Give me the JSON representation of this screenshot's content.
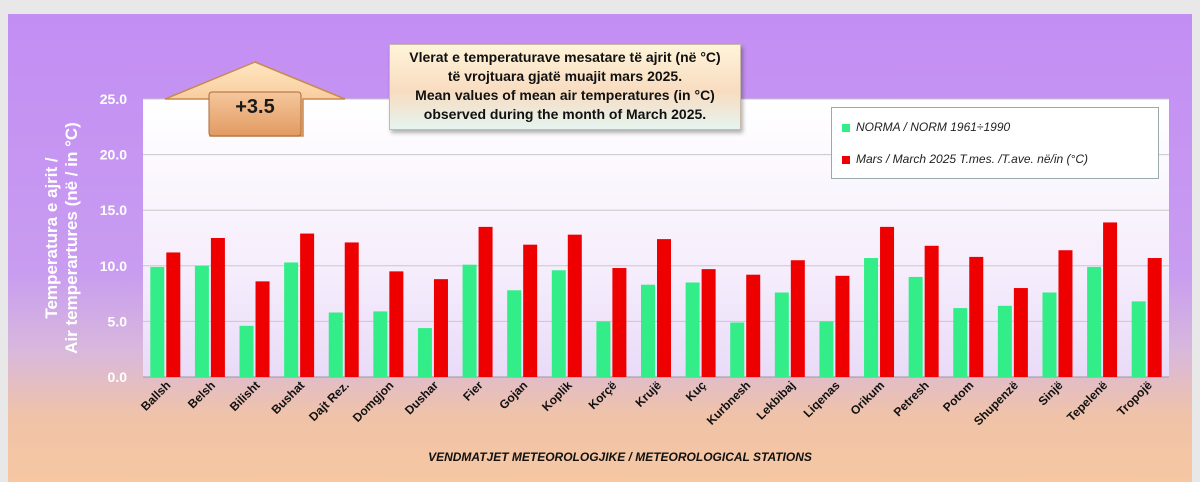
{
  "badge": {
    "value": "+3.5"
  },
  "chart_data": {
    "type": "bar",
    "title_lines": [
      "Vlerat e temperaturave mesatare të ajrit (në °C)",
      "të vrojtuara gjatë muajit mars 2025.",
      "Mean values of mean air temperatures (in °C)",
      "observed during the month of March 2025."
    ],
    "ylabel_lines": [
      "Temperatura e ajrit /",
      "Air temperartures (në / in °C)"
    ],
    "xlabel": "VENDMATJET  METEOROLOGJIKE / METEOROLOGICAL STATIONS",
    "ylim": [
      0,
      25
    ],
    "yticks": [
      "0.0",
      "5.0",
      "10.0",
      "15.0",
      "20.0",
      "25.0"
    ],
    "grid": true,
    "legend_position": "top-right",
    "categories": [
      "Ballsh",
      "Belsh",
      "Bilisht",
      "Bushat",
      "Dajt Rez.",
      "Domgjon",
      "Dushar",
      "Fier",
      "Gojan",
      "Koplik",
      "Korçë",
      "Krujë",
      "Kuç",
      "Kurbnesh",
      "Lekbibaj",
      "Liqenas",
      "Orikum",
      "Petresh",
      "Potom",
      "Shupenzë",
      "Sinjë",
      "Tepelenë",
      "Tropojë"
    ],
    "series": [
      {
        "name": "NORMA / NORM 1961÷1990",
        "color": "#33ee88",
        "values": [
          9.9,
          10.0,
          4.6,
          10.3,
          5.8,
          5.9,
          4.4,
          10.1,
          7.8,
          9.6,
          5.0,
          8.3,
          8.5,
          4.9,
          7.6,
          5.0,
          10.7,
          9.0,
          6.2,
          6.4,
          7.6,
          9.9,
          6.8
        ]
      },
      {
        "name": "Mars / March 2025  T.mes. /T.ave. në/in (°C)",
        "color": "#ee0000",
        "values": [
          11.2,
          12.5,
          8.6,
          12.9,
          12.1,
          9.5,
          8.8,
          13.5,
          11.9,
          12.8,
          9.8,
          12.4,
          9.7,
          9.2,
          10.5,
          9.1,
          13.5,
          11.8,
          10.8,
          8.0,
          11.4,
          13.9,
          10.7
        ]
      }
    ]
  }
}
